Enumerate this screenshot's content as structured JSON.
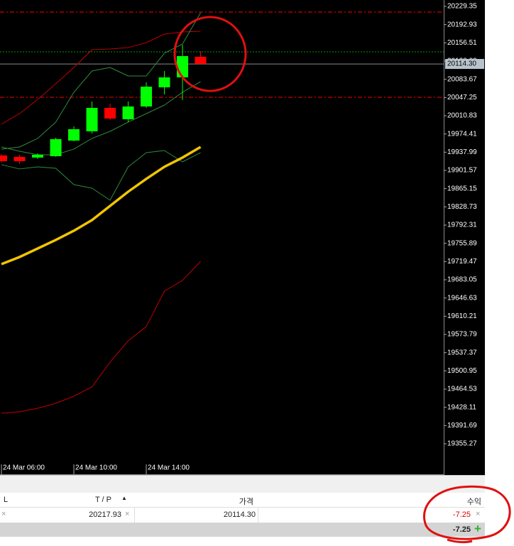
{
  "chart_data": {
    "type": "candlestick",
    "x": [
      6,
      7,
      8,
      9,
      10,
      11,
      12,
      13,
      14,
      15,
      16,
      17
    ],
    "open": [
      19931.4,
      19928.6,
      19927.2,
      19930.0,
      19961.2,
      19979.7,
      20026.5,
      20003.8,
      20029.3,
      20067.6,
      20087.5,
      20128.6
    ],
    "high": [
      19934.3,
      19932.9,
      19935.7,
      19966.9,
      19989.6,
      20039.2,
      20035.0,
      20039.2,
      20077.5,
      20100.2,
      20152.7,
      20140.0
    ],
    "low": [
      19917.2,
      19914.4,
      19924.3,
      19928.6,
      19959.8,
      19975.4,
      20002.4,
      19998.1,
      20026.5,
      20053.4,
      20042.1,
      20114.3
    ],
    "close": [
      19920.1,
      19920.1,
      19932.8,
      19964.1,
      19983.9,
      20026.5,
      20005.2,
      20029.3,
      20069.0,
      20087.5,
      20130.0,
      20114.3
    ],
    "up_color": "#00ff00",
    "down_color": "#ff0000",
    "series": [
      {
        "color": "#c00000",
        "width": 1,
        "values": [
          19993.8,
          20015.1,
          20043.5,
          20074.7,
          20107.3,
          20142.8,
          20144.2,
          20147.1,
          20157.0,
          20174.0,
          20178.3,
          20179.7
        ]
      },
      {
        "color": "#c00000",
        "width": 1,
        "values": [
          19416.4,
          19419.2,
          19426.3,
          19436.2,
          19450.4,
          19468.9,
          19518.5,
          19561.1,
          19589.5,
          19660.4,
          19681.7,
          19720.0
        ]
      },
      {
        "color": "#2e8b3e",
        "width": 1,
        "values": [
          19944.2,
          19948.4,
          19965.5,
          19998.1,
          20057.7,
          20100.2,
          20107.3,
          20090.3,
          20090.3,
          20135.7,
          20154.2,
          20216.6
        ]
      },
      {
        "color": "#2e8b3e",
        "width": 1,
        "values": [
          19948.4,
          19939.9,
          19932.8,
          19932.8,
          19944.2,
          19965.5,
          19979.6,
          19998.1,
          20015.1,
          20032.1,
          20057.7,
          20079.0
        ]
      },
      {
        "color": "#2e8b3e",
        "width": 1,
        "values": [
          19913.0,
          19904.5,
          19908.7,
          19905.9,
          19873.2,
          19866.1,
          19842.0,
          19908.7,
          19937.1,
          19941.3,
          19918.6,
          19937.1
        ]
      },
      {
        "color": "#f2c500",
        "width": 3.5,
        "values": [
          19714.3,
          19728.5,
          19745.5,
          19762.6,
          19781.0,
          19802.3,
          19830.7,
          19859.0,
          19884.6,
          19908.7,
          19927.2,
          19948.4
        ]
      }
    ],
    "levels": [
      {
        "value": 20217.93,
        "color": "#ff0000",
        "dash": "6 3 2 3"
      },
      {
        "value": 20138.6,
        "color": "#00a000",
        "dash": "2 2"
      },
      {
        "value": 20047.7,
        "color": "#ff0000",
        "dash": "6 3 2 3"
      }
    ],
    "price_label": {
      "value": 20114.3,
      "label": "20114.30"
    },
    "xlim": [
      5.92,
      30.43
    ],
    "xticks": [
      {
        "value": 6,
        "label": "24 Mar 06:00"
      },
      {
        "value": 10,
        "label": "24 Mar 10:00"
      },
      {
        "value": 14,
        "label": "24 Mar 14:00"
      }
    ],
    "ylim": [
      19294.3,
      20242.1
    ],
    "yticks": [
      20229.35,
      20192.93,
      20156.51,
      20120.09,
      20083.67,
      20047.25,
      20010.83,
      19974.41,
      19937.99,
      19901.57,
      19865.15,
      19828.73,
      19792.31,
      19755.89,
      19719.47,
      19683.05,
      19646.63,
      19610.21,
      19573.79,
      19537.37,
      19500.95,
      19464.53,
      19428.11,
      19391.69,
      19355.27
    ]
  },
  "terminal": {
    "header": [
      "L",
      "T / P",
      "가격",
      "수익"
    ],
    "row": [
      "20217.93",
      "20114.30",
      "-7.25"
    ],
    "total": "-7.25"
  }
}
